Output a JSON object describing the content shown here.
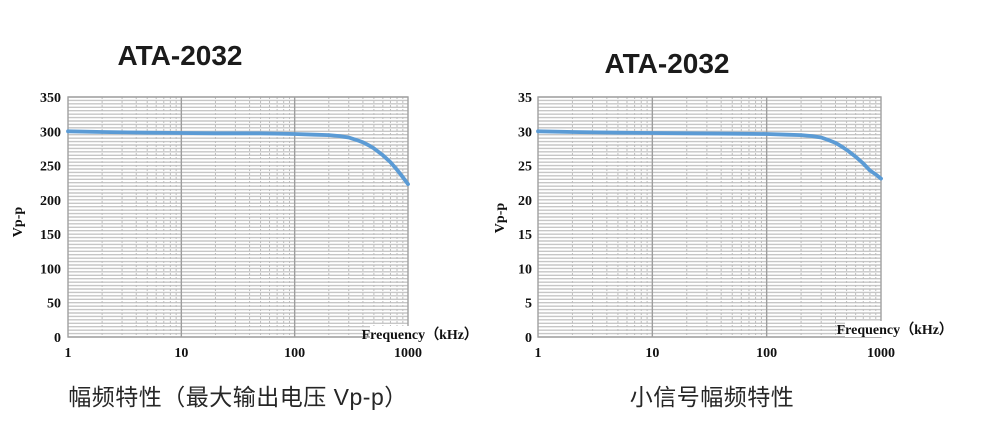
{
  "page": {
    "background": "#ffffff"
  },
  "chart_data": [
    {
      "type": "line",
      "title": "ATA-2032",
      "caption": "幅频特性（最大输出电压 Vp-p）",
      "xlabel": "Frequency（kHz）",
      "ylabel": "Vp-p",
      "x_scale": "log",
      "xlim": [
        1,
        1000
      ],
      "ylim": [
        0,
        350
      ],
      "x_ticks": [
        1,
        10,
        100,
        1000
      ],
      "y_ticks": [
        0,
        50,
        100,
        150,
        200,
        250,
        300,
        350
      ],
      "y_minor_step": 5,
      "grid": true,
      "legend": false,
      "line_color": "#5B9BD5",
      "series": [
        {
          "x": [
            1,
            2,
            5,
            10,
            20,
            50,
            100,
            150,
            200,
            250,
            300,
            350,
            400,
            450,
            500,
            600,
            700,
            800,
            900,
            1000
          ],
          "y": [
            300,
            299,
            298,
            297.5,
            297,
            297,
            296,
            295,
            294.5,
            293,
            291,
            287.5,
            284,
            279.5,
            275,
            265,
            255,
            244,
            233,
            223
          ]
        }
      ]
    },
    {
      "type": "line",
      "title": "ATA-2032",
      "caption": "小信号幅频特性",
      "xlabel": "Frequency（kHz）",
      "ylabel": "Vp-p",
      "x_scale": "log",
      "xlim": [
        1,
        1000
      ],
      "ylim": [
        0,
        35
      ],
      "x_ticks": [
        1,
        10,
        100,
        1000
      ],
      "y_ticks": [
        0,
        5,
        10,
        15,
        20,
        25,
        30,
        35
      ],
      "y_minor_step": 0.5,
      "grid": true,
      "legend": false,
      "line_color": "#5B9BD5",
      "series": [
        {
          "x": [
            1,
            2,
            5,
            10,
            20,
            50,
            100,
            150,
            200,
            250,
            300,
            350,
            400,
            450,
            500,
            600,
            700,
            800,
            900,
            1000
          ],
          "y": [
            30,
            29.9,
            29.8,
            29.75,
            29.7,
            29.65,
            29.6,
            29.5,
            29.45,
            29.3,
            29.1,
            28.7,
            28.3,
            27.8,
            27.3,
            26.3,
            25.3,
            24.3,
            23.7,
            23.1
          ]
        }
      ]
    }
  ]
}
